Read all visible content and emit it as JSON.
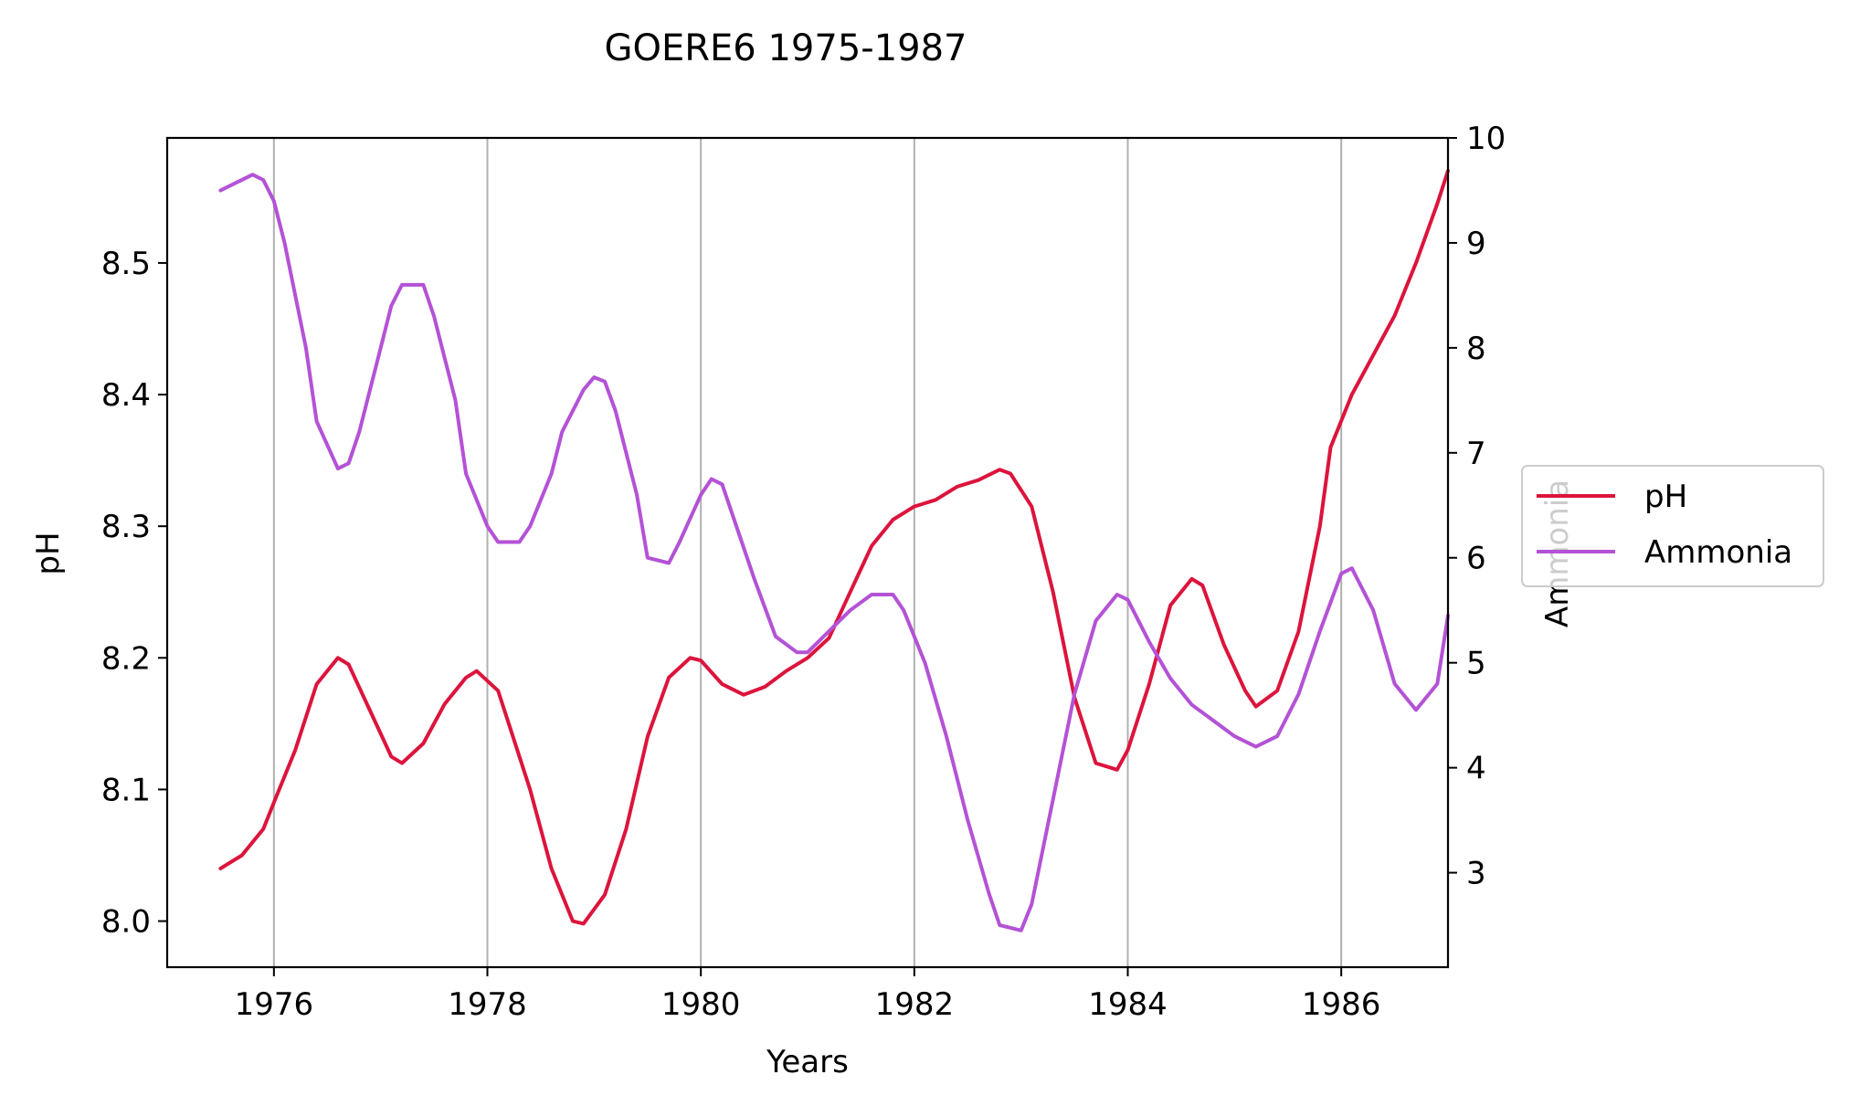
{
  "chart_data": {
    "type": "line",
    "title": "GOERE6 1975-1987",
    "xlabel": "Years",
    "ylabel": "pH",
    "y2label": "Ammonia",
    "xlim": [
      1975.0,
      1987.0
    ],
    "ylim": [
      7.965,
      8.595
    ],
    "y2lim": [
      2.1,
      10.0
    ],
    "xticks": [
      1976,
      1978,
      1980,
      1982,
      1984,
      1986
    ],
    "yticks": [
      "8.0",
      "8.1",
      "8.2",
      "8.3",
      "8.4",
      "8.5"
    ],
    "y2ticks": [
      "3",
      "4",
      "5",
      "6",
      "7",
      "8",
      "9",
      "10"
    ],
    "grid": "x-only",
    "legend_position": "right-outside",
    "series": [
      {
        "name": "pH",
        "axis": "left",
        "color": "#dc143c",
        "x": [
          1975.5,
          1975.7,
          1975.9,
          1976.0,
          1976.2,
          1976.4,
          1976.6,
          1976.7,
          1976.9,
          1977.1,
          1977.2,
          1977.4,
          1977.6,
          1977.8,
          1977.9,
          1978.1,
          1978.2,
          1978.4,
          1978.6,
          1978.8,
          1978.9,
          1979.1,
          1979.3,
          1979.5,
          1979.7,
          1979.9,
          1980.0,
          1980.2,
          1980.4,
          1980.6,
          1980.8,
          1981.0,
          1981.2,
          1981.4,
          1981.6,
          1981.8,
          1982.0,
          1982.2,
          1982.4,
          1982.6,
          1982.8,
          1982.9,
          1983.1,
          1983.3,
          1983.5,
          1983.7,
          1983.9,
          1984.0,
          1984.2,
          1984.4,
          1984.6,
          1984.7,
          1984.9,
          1985.1,
          1985.2,
          1985.4,
          1985.6,
          1985.8,
          1985.9,
          1986.1,
          1986.3,
          1986.5,
          1986.7,
          1986.9,
          1987.0
        ],
        "y": [
          8.04,
          8.05,
          8.07,
          8.09,
          8.13,
          8.18,
          8.2,
          8.195,
          8.16,
          8.125,
          8.12,
          8.135,
          8.165,
          8.185,
          8.19,
          8.175,
          8.15,
          8.1,
          8.04,
          8.0,
          7.998,
          8.02,
          8.07,
          8.14,
          8.185,
          8.2,
          8.198,
          8.18,
          8.172,
          8.178,
          8.19,
          8.2,
          8.215,
          8.25,
          8.285,
          8.305,
          8.315,
          8.32,
          8.33,
          8.335,
          8.343,
          8.34,
          8.315,
          8.25,
          8.17,
          8.12,
          8.115,
          8.13,
          8.18,
          8.24,
          8.26,
          8.255,
          8.21,
          8.175,
          8.163,
          8.175,
          8.22,
          8.3,
          8.36,
          8.4,
          8.43,
          8.46,
          8.5,
          8.545,
          8.57
        ]
      },
      {
        "name": "Ammonia",
        "axis": "right",
        "color": "#b452d6",
        "x": [
          1975.5,
          1975.6,
          1975.8,
          1975.9,
          1976.0,
          1976.1,
          1976.3,
          1976.4,
          1976.6,
          1976.7,
          1976.8,
          1977.0,
          1977.1,
          1977.2,
          1977.4,
          1977.5,
          1977.7,
          1977.8,
          1978.0,
          1978.1,
          1978.3,
          1978.4,
          1978.6,
          1978.7,
          1978.9,
          1979.0,
          1979.1,
          1979.2,
          1979.4,
          1979.5,
          1979.7,
          1979.8,
          1980.0,
          1980.1,
          1980.2,
          1980.3,
          1980.5,
          1980.7,
          1980.9,
          1981.0,
          1981.2,
          1981.4,
          1981.6,
          1981.8,
          1981.9,
          1982.1,
          1982.3,
          1982.5,
          1982.7,
          1982.8,
          1983.0,
          1983.1,
          1983.3,
          1983.5,
          1983.7,
          1983.9,
          1984.0,
          1984.2,
          1984.4,
          1984.6,
          1984.8,
          1985.0,
          1985.2,
          1985.4,
          1985.6,
          1985.8,
          1986.0,
          1986.1,
          1986.3,
          1986.5,
          1986.7,
          1986.9,
          1987.0
        ],
        "y": [
          9.5,
          9.55,
          9.65,
          9.6,
          9.4,
          9.0,
          8.0,
          7.3,
          6.85,
          6.9,
          7.2,
          8.0,
          8.4,
          8.6,
          8.6,
          8.3,
          7.5,
          6.8,
          6.3,
          6.15,
          6.15,
          6.3,
          6.8,
          7.2,
          7.6,
          7.72,
          7.68,
          7.4,
          6.6,
          6.0,
          5.95,
          6.15,
          6.6,
          6.75,
          6.7,
          6.4,
          5.8,
          5.25,
          5.1,
          5.1,
          5.3,
          5.5,
          5.65,
          5.65,
          5.5,
          5.0,
          4.3,
          3.5,
          2.8,
          2.5,
          2.45,
          2.7,
          3.7,
          4.7,
          5.4,
          5.65,
          5.6,
          5.2,
          4.85,
          4.6,
          4.45,
          4.3,
          4.2,
          4.3,
          4.7,
          5.3,
          5.85,
          5.9,
          5.5,
          4.8,
          4.55,
          4.8,
          5.45
        ]
      }
    ]
  }
}
